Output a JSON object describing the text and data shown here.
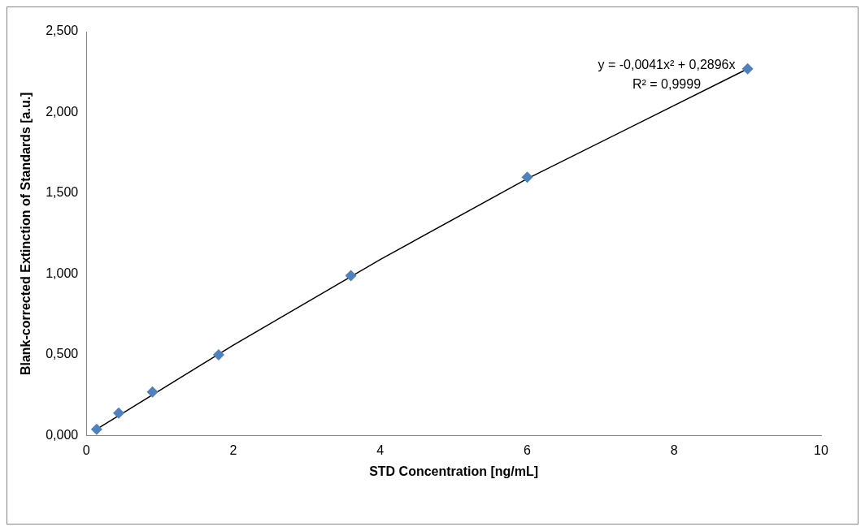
{
  "chart_data": {
    "type": "scatter",
    "xlabel": "STD Concentration [ng/mL]",
    "ylabel": "Blank-corrected Extinction of Standards [a.u.]",
    "annotations": [
      "y = -0,0041x² + 0,2896x",
      "R² = 0,9999"
    ],
    "xlim": [
      0,
      10
    ],
    "xticks": [
      0,
      2,
      4,
      6,
      8,
      10
    ],
    "ylim": [
      0,
      2.5
    ],
    "yticks": [
      {
        "value": 0,
        "label": "0,000"
      },
      {
        "value": 0.5,
        "label": "0,500"
      },
      {
        "value": 1,
        "label": "1,000"
      },
      {
        "value": 1.5,
        "label": "1,500"
      },
      {
        "value": 2,
        "label": "2,000"
      },
      {
        "value": 2.5,
        "label": "2,500"
      }
    ],
    "grid": false,
    "legend": false,
    "series": [
      {
        "type": "scatter",
        "color": "#4f81bd",
        "marker": "diamond",
        "x": [
          0.14,
          0.44,
          0.9,
          1.8,
          3.6,
          6,
          9
        ],
        "values": [
          0.04,
          0.14,
          0.27,
          0.5,
          0.99,
          1.6,
          2.27
        ]
      },
      {
        "type": "line",
        "color": "#000000",
        "marker": "none",
        "line_style": "solid",
        "x": [
          0.14,
          2,
          4,
          6,
          9
        ],
        "values": [
          0.04,
          0.56,
          1.09,
          1.59,
          2.27
        ]
      }
    ]
  }
}
